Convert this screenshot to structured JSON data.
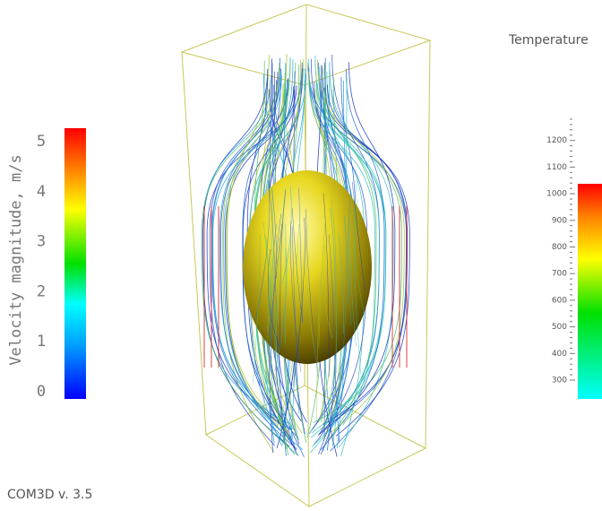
{
  "left_colorbar": {
    "title": "Velocity magnitude, m/s",
    "ticks": [
      "0",
      "1",
      "2",
      "3",
      "4",
      "5"
    ]
  },
  "right_colorbar": {
    "title": "Temperature",
    "ticks": [
      "300",
      "400",
      "500",
      "600",
      "700",
      "800",
      "900",
      "1000",
      "1100",
      "1200"
    ]
  },
  "footer": "COM3D v. 3.5"
}
